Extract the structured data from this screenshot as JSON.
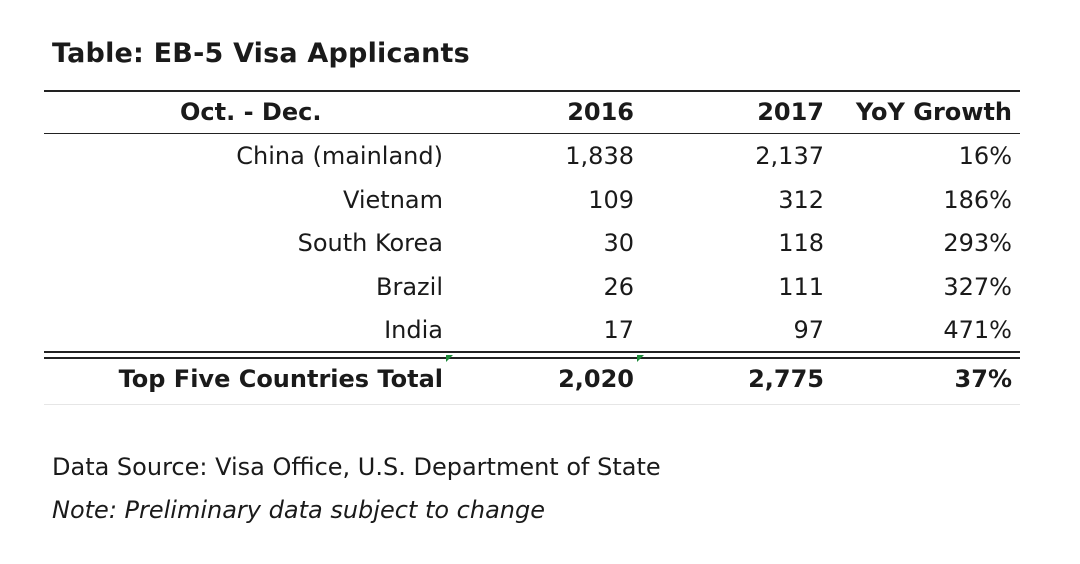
{
  "chart_data": {
    "type": "table",
    "title": "Table: EB-5 Visa Applicants",
    "columns": [
      "Oct. - Dec.",
      "2016",
      "2017",
      "YoY Growth"
    ],
    "rows": [
      {
        "label": "China (mainland)",
        "y2016": "1,838",
        "y2017": "2,137",
        "growth": "16%"
      },
      {
        "label": "Vietnam",
        "y2016": "109",
        "y2017": "312",
        "growth": "186%"
      },
      {
        "label": "South Korea",
        "y2016": "30",
        "y2017": "118",
        "growth": "293%"
      },
      {
        "label": "Brazil",
        "y2016": "26",
        "y2017": "111",
        "growth": "327%"
      },
      {
        "label": "India",
        "y2016": "17",
        "y2017": "97",
        "growth": "471%"
      }
    ],
    "total": {
      "label": "Top Five Countries Total",
      "y2016": "2,020",
      "y2017": "2,775",
      "growth": "37%"
    },
    "values_2016": [
      1838,
      109,
      30,
      26,
      17
    ],
    "values_2017": [
      2137,
      312,
      118,
      111,
      97
    ],
    "growth_pct": [
      16,
      186,
      293,
      327,
      471
    ]
  },
  "footer": {
    "source": "Data Source: Visa Office, U.S. Department of State",
    "note": "Note: Preliminary data subject to change"
  },
  "colors": {
    "text": "#1a1a1a",
    "rule": "#222222",
    "marker": "#1e8a3a"
  }
}
